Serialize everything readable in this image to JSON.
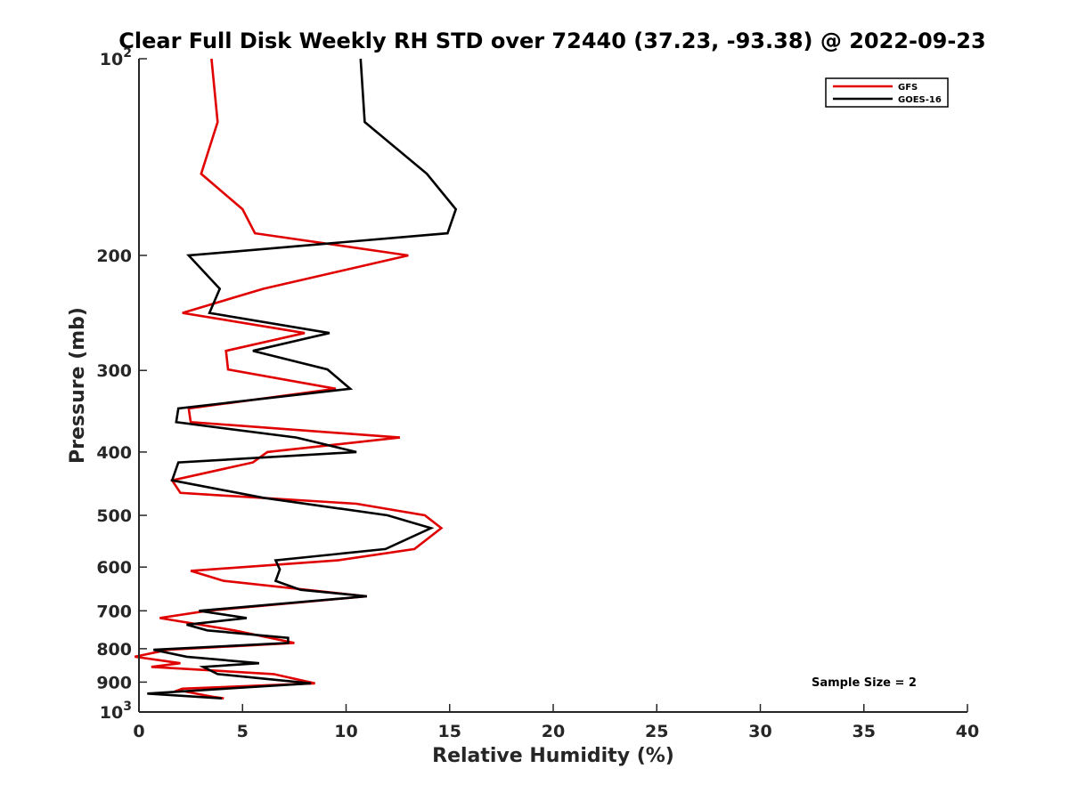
{
  "chart_data": {
    "type": "line",
    "title": "Clear Full Disk Weekly RH STD over 72440 (37.23, -93.38) @ 2022-09-23",
    "xlabel": "Relative Humidity (%)",
    "ylabel": "Pressure (mb)",
    "xlim": [
      0,
      40
    ],
    "ylim": [
      100,
      1000
    ],
    "y_scale": "log",
    "y_reversed": true,
    "x_ticks": [
      "0",
      "5",
      "10",
      "15",
      "20",
      "25",
      "30",
      "35",
      "40"
    ],
    "y_ticks": [
      {
        "value": 100,
        "base": "10",
        "exp": "2"
      },
      {
        "value": 200,
        "label": "200"
      },
      {
        "value": 300,
        "label": "300"
      },
      {
        "value": 400,
        "label": "400"
      },
      {
        "value": 500,
        "label": "500"
      },
      {
        "value": 600,
        "label": "600"
      },
      {
        "value": 700,
        "label": "700"
      },
      {
        "value": 800,
        "label": "800"
      },
      {
        "value": 900,
        "label": "900"
      },
      {
        "value": 1000,
        "base": "10",
        "exp": "3"
      }
    ],
    "legend_position": "top-right",
    "annotation": "Sample Size = 2",
    "series": [
      {
        "name": "GFS",
        "color": "#e00000",
        "points": [
          [
            3.5,
            100
          ],
          [
            3.8,
            125
          ],
          [
            3.0,
            150
          ],
          [
            5.0,
            170
          ],
          [
            5.6,
            185
          ],
          [
            13.0,
            200
          ],
          [
            6.0,
            225
          ],
          [
            2.1,
            245
          ],
          [
            8.0,
            263
          ],
          [
            4.2,
            280
          ],
          [
            4.3,
            299
          ],
          [
            9.5,
            320
          ],
          [
            2.4,
            343
          ],
          [
            2.5,
            360
          ],
          [
            12.6,
            380
          ],
          [
            6.2,
            400
          ],
          [
            5.5,
            415
          ],
          [
            1.6,
            442
          ],
          [
            2.0,
            462
          ],
          [
            10.5,
            480
          ],
          [
            13.8,
            500
          ],
          [
            14.6,
            523
          ],
          [
            13.3,
            563
          ],
          [
            9.6,
            586
          ],
          [
            2.5,
            608
          ],
          [
            4.1,
            630
          ],
          [
            11.0,
            665
          ],
          [
            3.3,
            700
          ],
          [
            1.0,
            718
          ],
          [
            4.6,
            750
          ],
          [
            7.5,
            784
          ],
          [
            1.4,
            803
          ],
          [
            -0.2,
            823
          ],
          [
            2.0,
            842
          ],
          [
            0.6,
            853
          ],
          [
            6.5,
            875
          ],
          [
            8.5,
            904
          ],
          [
            2.1,
            921
          ],
          [
            1.9,
            926
          ],
          [
            3.5,
            947
          ],
          [
            4.1,
            953
          ]
        ]
      },
      {
        "name": "GOES-16",
        "color": "#000000",
        "points": [
          [
            10.7,
            100
          ],
          [
            10.9,
            125
          ],
          [
            13.9,
            150
          ],
          [
            15.3,
            170
          ],
          [
            14.9,
            185
          ],
          [
            2.4,
            200
          ],
          [
            3.9,
            225
          ],
          [
            3.4,
            245
          ],
          [
            9.2,
            263
          ],
          [
            5.5,
            280
          ],
          [
            9.1,
            299
          ],
          [
            10.2,
            320
          ],
          [
            1.9,
            343
          ],
          [
            1.8,
            360
          ],
          [
            7.6,
            380
          ],
          [
            10.5,
            400
          ],
          [
            1.9,
            415
          ],
          [
            1.6,
            442
          ],
          [
            6.0,
            470
          ],
          [
            12.0,
            500
          ],
          [
            14.1,
            523
          ],
          [
            11.9,
            563
          ],
          [
            6.6,
            586
          ],
          [
            6.8,
            605
          ],
          [
            6.6,
            630
          ],
          [
            7.8,
            650
          ],
          [
            11.0,
            665
          ],
          [
            2.9,
            700
          ],
          [
            5.2,
            718
          ],
          [
            2.3,
            735
          ],
          [
            3.3,
            750
          ],
          [
            7.2,
            770
          ],
          [
            7.2,
            784
          ],
          [
            0.7,
            803
          ],
          [
            2.3,
            823
          ],
          [
            5.8,
            842
          ],
          [
            3.1,
            853
          ],
          [
            3.8,
            875
          ],
          [
            8.3,
            904
          ],
          [
            0.4,
            937
          ],
          [
            4.0,
            953
          ]
        ]
      }
    ]
  }
}
